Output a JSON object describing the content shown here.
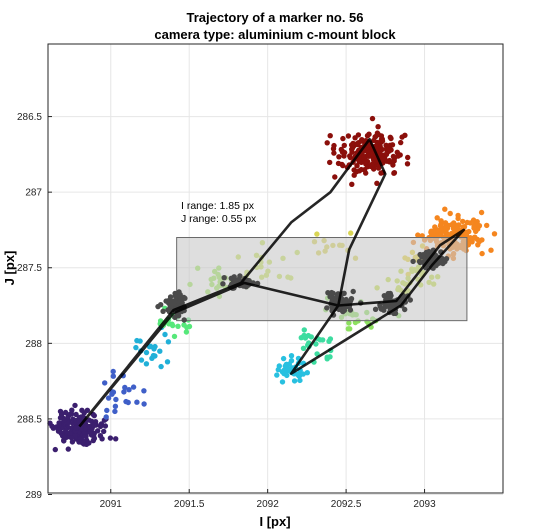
{
  "chart_data": {
    "type": "scatter",
    "title": "Trajectory of a marker no. 56",
    "subtitle": "camera type: aluminium c-mount block",
    "xlabel": "I [px]",
    "ylabel": "J [px]",
    "xlim": [
      2090.6,
      2093.5
    ],
    "ylim": [
      288.99,
      286.02
    ],
    "y_reversed": true,
    "grid": true,
    "x_ticks": [
      2091,
      2091.5,
      2092,
      2092.5,
      2093
    ],
    "x_tick_labels": [
      "2091",
      "2091.5",
      "2092",
      "2092.5",
      "2093"
    ],
    "y_ticks": [
      286.5,
      287,
      287.5,
      288,
      288.5,
      289
    ],
    "y_tick_labels": [
      "286.5",
      "287",
      "287.5",
      "288",
      "288.5",
      "289"
    ],
    "range_box": {
      "x": [
        2091.42,
        2093.27
      ],
      "y": [
        287.3,
        287.85
      ]
    },
    "annotations": [
      "I range: 1.85 px",
      "J range: 0.55 px"
    ],
    "clusters": [
      {
        "center": [
          2090.78,
          288.56
        ],
        "spread": [
          0.09,
          0.05
        ],
        "count": 170,
        "color": "#3b1f6e"
      },
      {
        "center": [
          2091.05,
          288.33
        ],
        "spread": [
          0.08,
          0.06
        ],
        "count": 22,
        "color": "#3f5fc8"
      },
      {
        "center": [
          2091.25,
          288.05
        ],
        "spread": [
          0.07,
          0.06
        ],
        "count": 20,
        "color": "#20b0d8"
      },
      {
        "center": [
          2091.4,
          287.85
        ],
        "spread": [
          0.06,
          0.05
        ],
        "count": 20,
        "color": "#56e87a"
      },
      {
        "center": [
          2091.7,
          287.6
        ],
        "spread": [
          0.09,
          0.04
        ],
        "count": 24,
        "color": "#9de85a"
      },
      {
        "center": [
          2092.0,
          287.5
        ],
        "spread": [
          0.1,
          0.05
        ],
        "count": 20,
        "color": "#c8e35a"
      },
      {
        "center": [
          2092.4,
          287.35
        ],
        "spread": [
          0.1,
          0.05
        ],
        "count": 12,
        "color": "#d9d555"
      },
      {
        "center": [
          2092.66,
          286.75
        ],
        "spread": [
          0.11,
          0.07
        ],
        "count": 200,
        "color": "#8b0f0b"
      },
      {
        "center": [
          2093.2,
          287.28
        ],
        "spread": [
          0.09,
          0.06
        ],
        "count": 160,
        "color": "#f5861f"
      },
      {
        "center": [
          2092.95,
          287.45
        ],
        "spread": [
          0.05,
          0.05
        ],
        "count": 14,
        "color": "#e8d43a"
      },
      {
        "center": [
          2092.15,
          288.18
        ],
        "spread": [
          0.05,
          0.04
        ],
        "count": 40,
        "color": "#28c0e0"
      },
      {
        "center": [
          2092.3,
          288.0
        ],
        "spread": [
          0.06,
          0.05
        ],
        "count": 22,
        "color": "#3ddca0"
      },
      {
        "center": [
          2092.55,
          287.8
        ],
        "spread": [
          0.08,
          0.05
        ],
        "count": 25,
        "color": "#8de060"
      },
      {
        "center": [
          2092.9,
          287.6
        ],
        "spread": [
          0.08,
          0.05
        ],
        "count": 25,
        "color": "#c5e04a"
      },
      {
        "center": [
          2091.42,
          287.73
        ],
        "spread": [
          0.04,
          0.035
        ],
        "count": 70,
        "color": "#4a4a4a"
      },
      {
        "center": [
          2091.83,
          287.6
        ],
        "spread": [
          0.05,
          0.02
        ],
        "count": 60,
        "color": "#4a4a4a"
      },
      {
        "center": [
          2092.45,
          287.73
        ],
        "spread": [
          0.04,
          0.035
        ],
        "count": 70,
        "color": "#4a4a4a"
      },
      {
        "center": [
          2092.8,
          287.73
        ],
        "spread": [
          0.05,
          0.03
        ],
        "count": 60,
        "color": "#4a4a4a"
      },
      {
        "center": [
          2093.05,
          287.45
        ],
        "spread": [
          0.04,
          0.03
        ],
        "count": 60,
        "color": "#4a4a4a"
      }
    ],
    "trajectory": [
      [
        2090.8,
        288.55
      ],
      [
        2091.4,
        287.78
      ],
      [
        2091.83,
        287.6
      ],
      [
        2092.15,
        287.2
      ],
      [
        2092.4,
        287.0
      ],
      [
        2092.65,
        286.65
      ],
      [
        2092.75,
        286.88
      ],
      [
        2092.52,
        287.38
      ],
      [
        2092.45,
        287.75
      ],
      [
        2092.15,
        288.2
      ],
      [
        2092.85,
        287.75
      ],
      [
        2093.05,
        287.48
      ],
      [
        2093.25,
        287.25
      ],
      [
        2093.1,
        287.35
      ],
      [
        2092.82,
        287.72
      ],
      [
        2092.45,
        287.75
      ],
      [
        2091.85,
        287.6
      ],
      [
        2091.4,
        287.8
      ],
      [
        2090.8,
        288.55
      ]
    ]
  }
}
